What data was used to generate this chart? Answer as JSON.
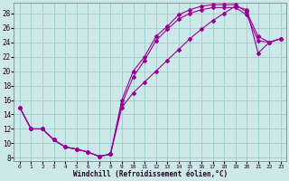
{
  "xlabel": "Windchill (Refroidissement éolien,°C)",
  "background_color": "#cce8e8",
  "grid_color": "#99cccc",
  "line_color": "#990099",
  "xlim": [
    -0.5,
    23.5
  ],
  "ylim": [
    7.5,
    29.5
  ],
  "yticks": [
    8,
    10,
    12,
    14,
    16,
    18,
    20,
    22,
    24,
    26,
    28
  ],
  "xticks": [
    0,
    1,
    2,
    3,
    4,
    5,
    6,
    7,
    8,
    9,
    10,
    11,
    12,
    13,
    14,
    15,
    16,
    17,
    18,
    19,
    20,
    21,
    22,
    23
  ],
  "curves": [
    {
      "x": [
        0,
        1,
        2,
        3,
        4,
        5,
        6,
        7,
        8,
        9,
        10,
        11,
        12,
        13,
        14,
        15,
        16,
        17,
        18,
        19,
        20,
        21,
        22,
        23
      ],
      "y": [
        15,
        12,
        12,
        10.5,
        9.5,
        9.2,
        8.8,
        8.2,
        8.5,
        16,
        20,
        22,
        24.8,
        26.2,
        27.8,
        28.5,
        29,
        29.2,
        29.2,
        29.2,
        28.2,
        24.8,
        24,
        24.5
      ]
    },
    {
      "x": [
        0,
        1,
        2,
        3,
        4,
        5,
        6,
        7,
        8,
        9,
        10,
        11,
        12,
        13,
        14,
        15,
        16,
        17,
        18,
        19,
        20,
        21,
        22,
        23
      ],
      "y": [
        15,
        12,
        12,
        10.5,
        9.5,
        9.2,
        8.8,
        8.2,
        8.5,
        15.5,
        19.2,
        21.5,
        24.2,
        25.8,
        27.2,
        28.0,
        28.5,
        28.8,
        28.8,
        28.8,
        27.8,
        24.2,
        24,
        24.5
      ]
    },
    {
      "x": [
        0,
        1,
        2,
        3,
        4,
        5,
        6,
        7,
        8,
        9,
        10,
        11,
        12,
        13,
        14,
        15,
        16,
        17,
        18,
        19,
        20,
        21,
        22,
        23
      ],
      "y": [
        15,
        12,
        12,
        10.5,
        9.5,
        9.2,
        8.8,
        8.2,
        8.5,
        15,
        17,
        18.5,
        20,
        21.5,
        23,
        24.5,
        25.8,
        27,
        28,
        29,
        28.5,
        22.5,
        24,
        24.5
      ]
    }
  ]
}
